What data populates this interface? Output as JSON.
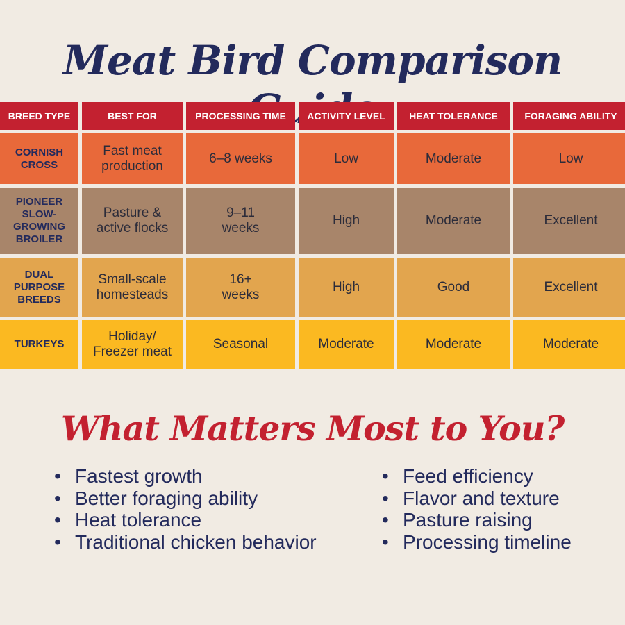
{
  "title": "Meat Bird Comparison Guide",
  "table": {
    "headers": [
      "BREED TYPE",
      "BEST FOR",
      "PROCESSING TIME",
      "ACTIVITY LEVEL",
      "HEAT TOLERANCE",
      "FORAGING ABILITY"
    ],
    "rows": [
      {
        "breed": "CORNISH CROSS",
        "best_for": "Fast meat production",
        "processing_time": "6–8 weeks",
        "activity_level": "Low",
        "heat_tolerance": "Moderate",
        "foraging_ability": "Low"
      },
      {
        "breed": "PIONEER SLOW-GROWING BROILER",
        "best_for": "Pasture & active flocks",
        "processing_time": "9–11 weeks",
        "activity_level": "High",
        "heat_tolerance": "Moderate",
        "foraging_ability": "Excellent"
      },
      {
        "breed": "DUAL PURPOSE BREEDS",
        "best_for": "Small-scale homesteads",
        "processing_time": "16+ weeks",
        "activity_level": "High",
        "heat_tolerance": "Good",
        "foraging_ability": "Excellent"
      },
      {
        "breed": "TURKEYS",
        "best_for": "Holiday/ Freezer meat",
        "processing_time": "Seasonal",
        "activity_level": "Moderate",
        "heat_tolerance": "Moderate",
        "foraging_ability": "Moderate"
      }
    ]
  },
  "subtitle": "What Matters Most to You?",
  "list_left": [
    "Fastest growth",
    "Better foraging ability",
    "Heat tolerance",
    "Traditional chicken behavior"
  ],
  "list_right": [
    "Feed efficiency",
    "Flavor and texture",
    "Pasture raising",
    "Processing timeline"
  ],
  "colors": {
    "navy": "#232a5c",
    "red": "#c32130",
    "row_orange": "#e8693a",
    "row_brown": "#a8856a",
    "row_tan": "#e2a54e",
    "row_yellow": "#fbb921",
    "background": "#f1ebe3"
  }
}
